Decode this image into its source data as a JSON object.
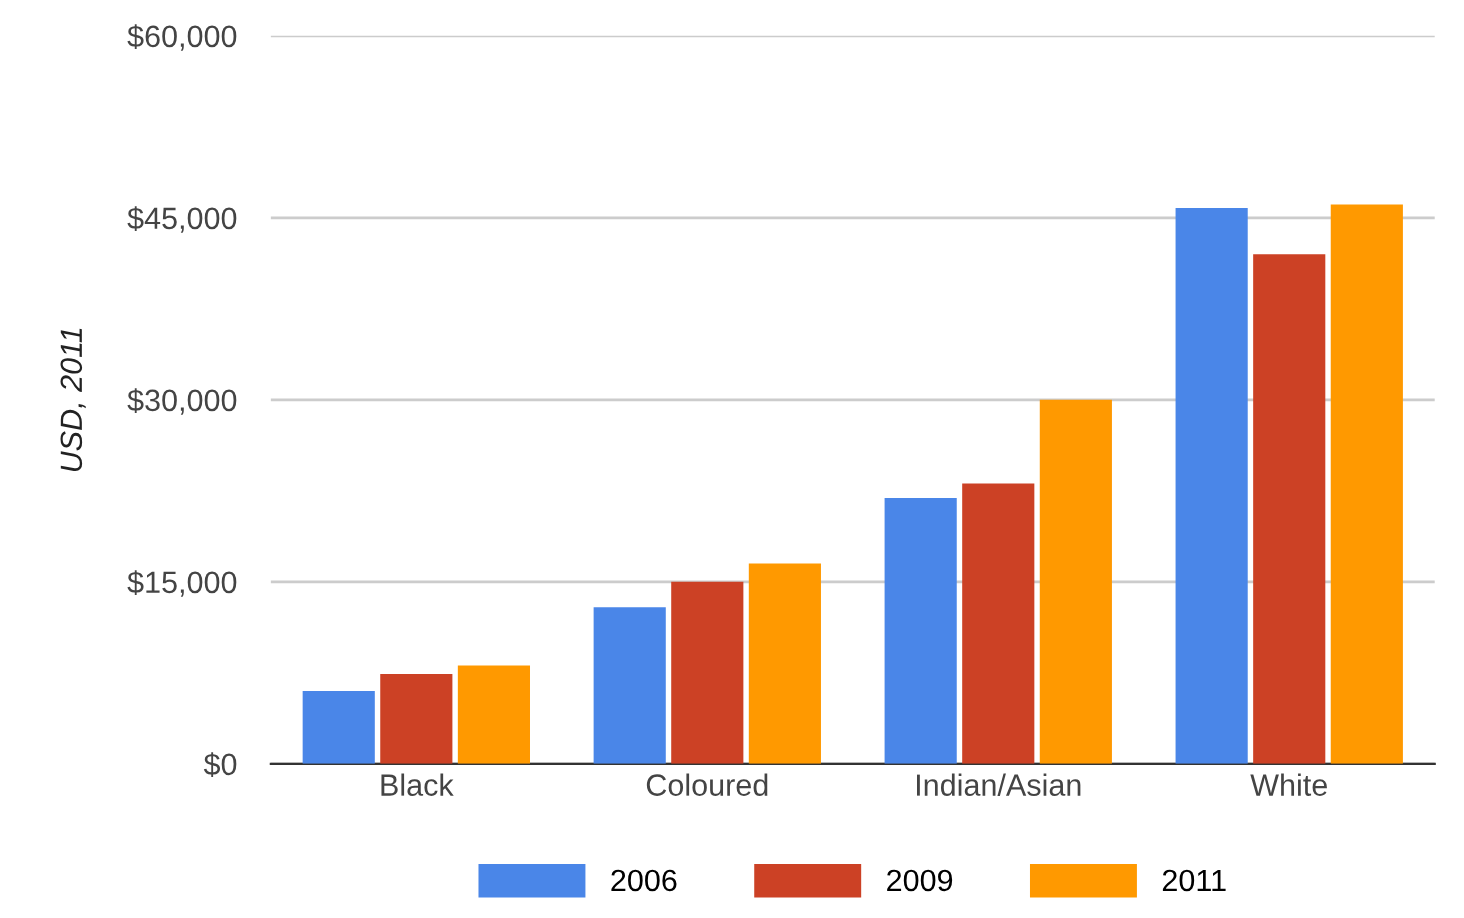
{
  "chart_data": {
    "type": "bar",
    "ylabel": "USD, 2011",
    "categories": [
      "Black",
      "Coloured",
      "Indian/Asian",
      "White"
    ],
    "series": [
      {
        "name": "2006",
        "color": "#4a86e8",
        "values": [
          6000,
          12900,
          21900,
          45800
        ]
      },
      {
        "name": "2009",
        "color": "#cc4125",
        "values": [
          7400,
          15000,
          23100,
          42000
        ]
      },
      {
        "name": "2011",
        "color": "#ff9900",
        "values": [
          8100,
          16500,
          30000,
          46100
        ]
      }
    ],
    "ylim": [
      0,
      60000
    ],
    "yticks": [
      {
        "value": 0,
        "label": "$0"
      },
      {
        "value": 15000,
        "label": "$15,000"
      },
      {
        "value": 30000,
        "label": "$30,000"
      },
      {
        "value": 45000,
        "label": "$45,000"
      },
      {
        "value": 60000,
        "label": "$60,000"
      }
    ],
    "grid": "y",
    "legend": "bottom"
  }
}
